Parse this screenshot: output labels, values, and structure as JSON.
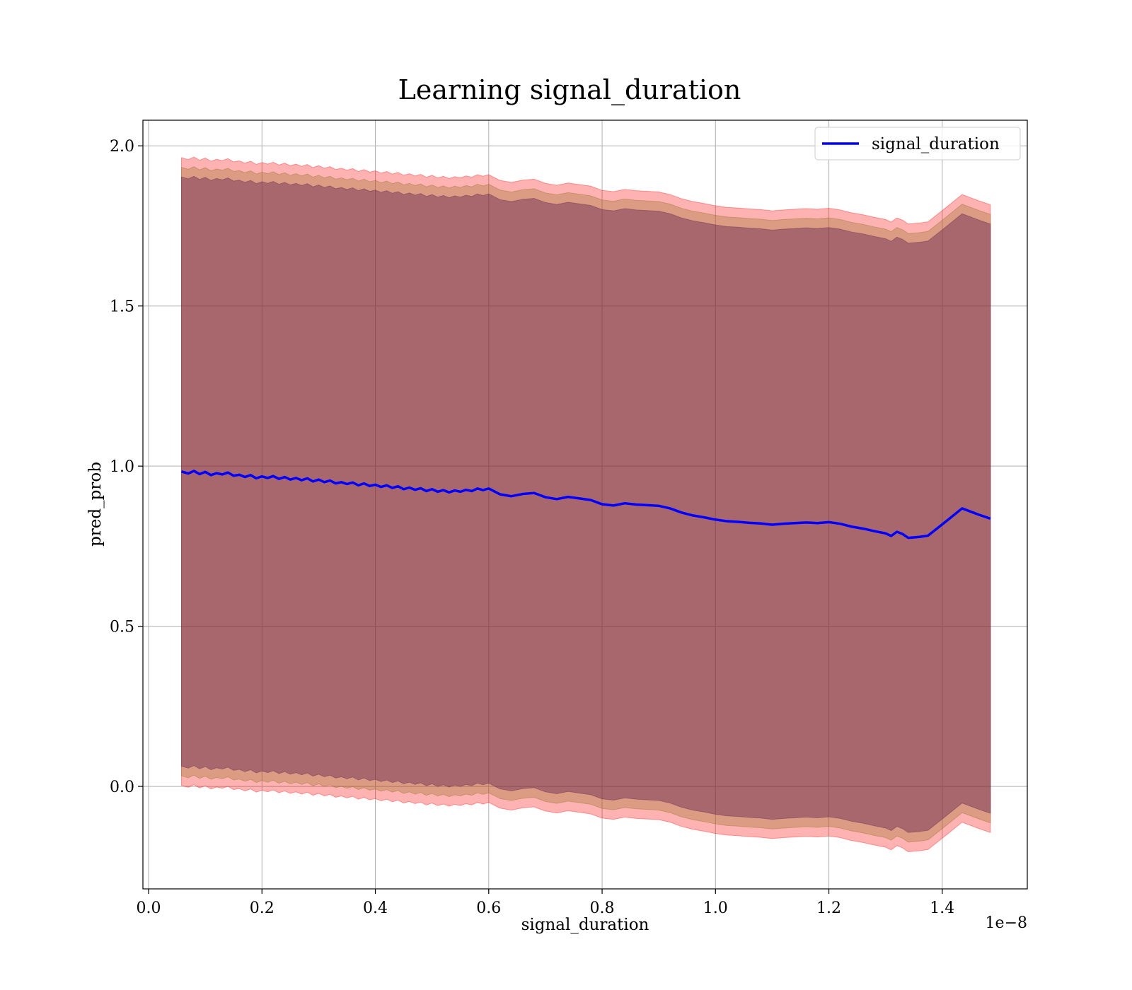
{
  "chart_data": {
    "type": "line",
    "title": "Learning signal_duration",
    "xlabel": "signal_duration",
    "ylabel": "pred_prob",
    "x_offset_label": "1e−8",
    "xlim": [
      -0.01,
      1.55
    ],
    "ylim": [
      -0.32,
      2.08
    ],
    "xticks": [
      0.0,
      0.2,
      0.4,
      0.6,
      0.8,
      1.0,
      1.2,
      1.4
    ],
    "xtick_labels": [
      "0.0",
      "0.2",
      "0.4",
      "0.6",
      "0.8",
      "1.0",
      "1.2",
      "1.4"
    ],
    "yticks": [
      0.0,
      0.5,
      1.0,
      1.5,
      2.0
    ],
    "ytick_labels": [
      "0.0",
      "0.5",
      "1.0",
      "1.5",
      "2.0"
    ],
    "grid": true,
    "legend_position": "top-right",
    "colors": {
      "line": "#0000ff",
      "band_outer": "#ff0000",
      "band_mid": "#8b6b1a",
      "band_inner": "#5a1a4a"
    },
    "band_offsets": [
      0.98,
      0.95,
      0.92
    ],
    "band_opacities": [
      0.3,
      0.3,
      0.4
    ],
    "series": [
      {
        "name": "signal_duration",
        "x": [
          0.058,
          0.07,
          0.08,
          0.09,
          0.1,
          0.11,
          0.12,
          0.13,
          0.14,
          0.15,
          0.16,
          0.17,
          0.18,
          0.19,
          0.2,
          0.21,
          0.22,
          0.23,
          0.24,
          0.25,
          0.26,
          0.27,
          0.28,
          0.29,
          0.3,
          0.31,
          0.32,
          0.33,
          0.34,
          0.35,
          0.36,
          0.37,
          0.38,
          0.39,
          0.4,
          0.41,
          0.42,
          0.43,
          0.44,
          0.45,
          0.46,
          0.47,
          0.48,
          0.49,
          0.5,
          0.51,
          0.52,
          0.53,
          0.54,
          0.55,
          0.56,
          0.57,
          0.58,
          0.59,
          0.6,
          0.62,
          0.64,
          0.66,
          0.68,
          0.7,
          0.72,
          0.74,
          0.76,
          0.78,
          0.8,
          0.82,
          0.84,
          0.86,
          0.88,
          0.9,
          0.92,
          0.94,
          0.96,
          0.98,
          1.0,
          1.02,
          1.04,
          1.06,
          1.08,
          1.1,
          1.12,
          1.14,
          1.16,
          1.18,
          1.2,
          1.22,
          1.24,
          1.26,
          1.28,
          1.3,
          1.31,
          1.32,
          1.33,
          1.34,
          1.36,
          1.375,
          1.405,
          1.435,
          1.465,
          1.485
        ],
        "values": [
          0.983,
          0.977,
          0.985,
          0.975,
          0.982,
          0.972,
          0.978,
          0.974,
          0.98,
          0.97,
          0.973,
          0.966,
          0.972,
          0.962,
          0.968,
          0.963,
          0.969,
          0.96,
          0.966,
          0.958,
          0.963,
          0.956,
          0.962,
          0.952,
          0.958,
          0.95,
          0.955,
          0.946,
          0.95,
          0.944,
          0.949,
          0.94,
          0.946,
          0.938,
          0.942,
          0.935,
          0.94,
          0.932,
          0.937,
          0.928,
          0.933,
          0.926,
          0.931,
          0.922,
          0.928,
          0.92,
          0.925,
          0.918,
          0.924,
          0.92,
          0.926,
          0.922,
          0.93,
          0.925,
          0.93,
          0.912,
          0.906,
          0.913,
          0.916,
          0.903,
          0.897,
          0.904,
          0.899,
          0.894,
          0.881,
          0.877,
          0.884,
          0.88,
          0.878,
          0.876,
          0.868,
          0.855,
          0.846,
          0.84,
          0.833,
          0.828,
          0.826,
          0.823,
          0.821,
          0.817,
          0.82,
          0.822,
          0.824,
          0.822,
          0.825,
          0.82,
          0.811,
          0.805,
          0.797,
          0.79,
          0.782,
          0.795,
          0.788,
          0.776,
          0.779,
          0.783,
          0.825,
          0.868,
          0.848,
          0.836
        ]
      }
    ]
  }
}
